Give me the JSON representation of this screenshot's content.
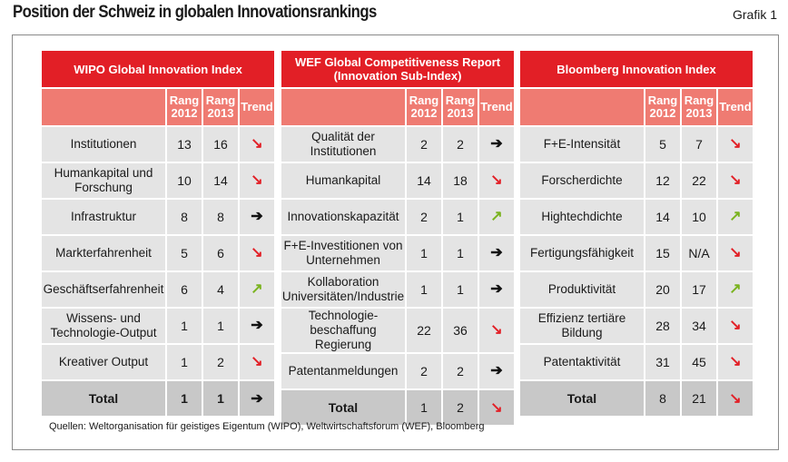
{
  "title": "Position der Schweiz in globalen Innovationsrankings",
  "grafik": "Grafik 1",
  "source": "Quellen: Weltorganisation für geistiges Eigentum (WIPO), Weltwirtschaftsforum (WEF), Bloomberg",
  "colors": {
    "header_red": "#e21f26",
    "subheader_red": "#ef7b72",
    "row_gray": "#e4e4e4",
    "total_gray": "#c8c8c8",
    "arrow_up_green": "#7ab31f",
    "arrow_down_red": "#e21f26"
  },
  "trend_icons": {
    "up": "↗",
    "down": "↘",
    "right": "➔"
  },
  "chart_data": [
    {
      "type": "table",
      "title": "WIPO Global Innovation Index",
      "columns": [
        "",
        "Rang 2012",
        "Rang 2013",
        "Trend"
      ],
      "col_headers": {
        "rang2012": "Rang 2012",
        "rang2013": "Rang 2013",
        "trend": "Trend"
      },
      "rows": [
        {
          "label": "Institutionen",
          "rang2012": "13",
          "rang2013": "16",
          "trend": "down"
        },
        {
          "label": "Humankapital und Forschung",
          "rang2012": "10",
          "rang2013": "14",
          "trend": "down"
        },
        {
          "label": "Infrastruktur",
          "rang2012": "8",
          "rang2013": "8",
          "trend": "right"
        },
        {
          "label": "Markterfahrenheit",
          "rang2012": "5",
          "rang2013": "6",
          "trend": "down"
        },
        {
          "label": "Geschäftserfahrenheit",
          "rang2012": "6",
          "rang2013": "4",
          "trend": "up"
        },
        {
          "label": "Wissens- und Technologie-Output",
          "rang2012": "1",
          "rang2013": "1",
          "trend": "right"
        },
        {
          "label": "Kreativer Output",
          "rang2012": "1",
          "rang2013": "2",
          "trend": "down"
        }
      ],
      "total": {
        "label": "Total",
        "rang2012": "1",
        "rang2013": "1",
        "trend": "right"
      }
    },
    {
      "type": "table",
      "title": "WEF Global Competitiveness Report (Innovation Sub-Index)",
      "columns": [
        "",
        "Rang 2012",
        "Rang 2013",
        "Trend"
      ],
      "col_headers": {
        "rang2012": "Rang 2012",
        "rang2013": "Rang 2013",
        "trend": "Trend"
      },
      "rows": [
        {
          "label": "Qualität der Institutionen",
          "rang2012": "2",
          "rang2013": "2",
          "trend": "right"
        },
        {
          "label": "Humankapital",
          "rang2012": "14",
          "rang2013": "18",
          "trend": "down"
        },
        {
          "label": "Innovationskapazität",
          "rang2012": "2",
          "rang2013": "1",
          "trend": "up"
        },
        {
          "label": "F+E-Investitionen von Unternehmen",
          "rang2012": "1",
          "rang2013": "1",
          "trend": "right"
        },
        {
          "label": "Kollaboration Universitäten/Industrie",
          "rang2012": "1",
          "rang2013": "1",
          "trend": "right"
        },
        {
          "label": "Technologie-beschaffung Regierung",
          "rang2012": "22",
          "rang2013": "36",
          "trend": "down"
        },
        {
          "label": "Patentanmeldungen",
          "rang2012": "2",
          "rang2013": "2",
          "trend": "right"
        }
      ],
      "total": {
        "label": "Total",
        "rang2012": "1",
        "rang2013": "2",
        "trend": "down"
      }
    },
    {
      "type": "table",
      "title": "Bloomberg Innovation Index",
      "columns": [
        "",
        "Rang 2012",
        "Rang 2013",
        "Trend"
      ],
      "col_headers": {
        "rang2012": "Rang 2012",
        "rang2013": "Rang 2013",
        "trend": "Trend"
      },
      "rows": [
        {
          "label": "F+E-Intensität",
          "rang2012": "5",
          "rang2013": "7",
          "trend": "down"
        },
        {
          "label": "Forscherdichte",
          "rang2012": "12",
          "rang2013": "22",
          "trend": "down"
        },
        {
          "label": "Hightechdichte",
          "rang2012": "14",
          "rang2013": "10",
          "trend": "up"
        },
        {
          "label": "Fertigungsfähigkeit",
          "rang2012": "15",
          "rang2013": "N/A",
          "trend": "down"
        },
        {
          "label": "Produktivität",
          "rang2012": "20",
          "rang2013": "17",
          "trend": "up"
        },
        {
          "label": "Effizienz tertiäre Bildung",
          "rang2012": "28",
          "rang2013": "34",
          "trend": "down"
        },
        {
          "label": "Patentaktivität",
          "rang2012": "31",
          "rang2013": "45",
          "trend": "down"
        }
      ],
      "total": {
        "label": "Total",
        "rang2012": "8",
        "rang2013": "21",
        "trend": "down"
      }
    }
  ]
}
